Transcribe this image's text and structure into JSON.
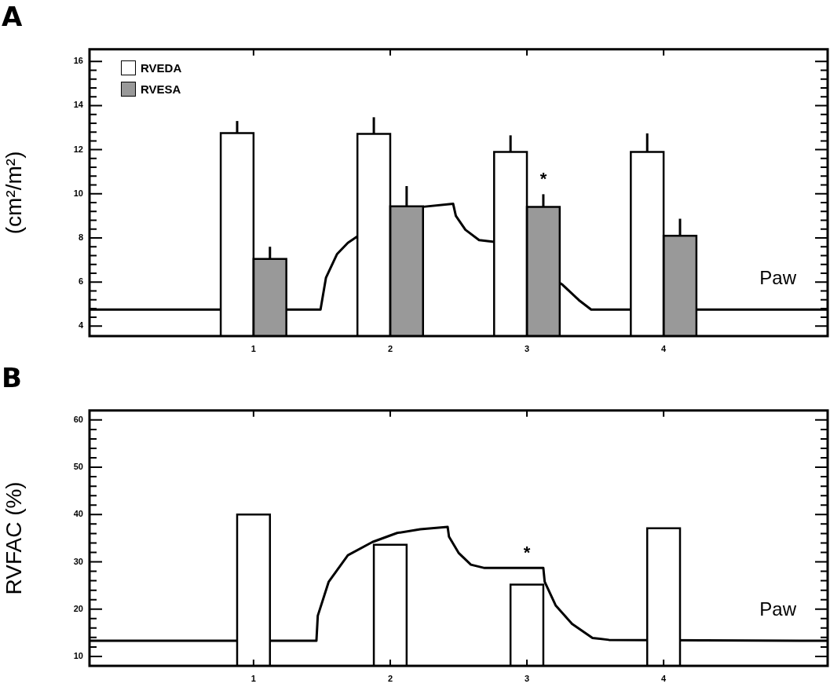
{
  "chart_data": [
    {
      "type": "bar",
      "title": "A",
      "ylabel": "(cm²/m²)",
      "x": [
        1,
        2,
        3,
        4
      ],
      "xlim": [
        -0.2,
        5.2
      ],
      "xticks": [
        1,
        2,
        3,
        4
      ],
      "ylim": [
        3.55,
        16.55
      ],
      "yticks": [
        4,
        {
          "value": 4.4,
          "label": null
        },
        {
          "value": 4.8,
          "label": null
        },
        {
          "value": 5.2,
          "label": null
        },
        {
          "value": 5.6,
          "label": null
        },
        6,
        {
          "value": 6.4,
          "label": null
        },
        {
          "value": 6.8,
          "label": null
        },
        {
          "value": 7.2,
          "label": null
        },
        {
          "value": 7.6,
          "label": null
        },
        8,
        {
          "value": 8.4,
          "label": null
        },
        {
          "value": 8.8,
          "label": null
        },
        {
          "value": 9.2,
          "label": null
        },
        {
          "value": 9.6,
          "label": null
        },
        10,
        {
          "value": 10.4,
          "label": null
        },
        {
          "value": 10.8,
          "label": null
        },
        {
          "value": 11.2,
          "label": null
        },
        {
          "value": 11.6,
          "label": null
        },
        12,
        {
          "value": 12.4,
          "label": null
        },
        {
          "value": 12.8,
          "label": null
        },
        {
          "value": 13.2,
          "label": null
        },
        {
          "value": 13.6,
          "label": null
        },
        14,
        {
          "value": 14.4,
          "label": null
        },
        {
          "value": 14.8,
          "label": null
        },
        {
          "value": 15.2,
          "label": null
        },
        {
          "value": 15.6,
          "label": null
        },
        16
      ],
      "legend": "top left",
      "series": [
        {
          "name": "RVEDA",
          "color": "#ffffff",
          "values": [
            12.75,
            12.72,
            11.9,
            11.9
          ],
          "errors": [
            [
              12.75,
              13.3
            ],
            [
              12.72,
              13.47
            ],
            [
              11.9,
              12.65
            ],
            [
              11.9,
              12.74
            ]
          ]
        },
        {
          "name": "RVESA",
          "color": "#999999",
          "values": [
            7.05,
            9.43,
            9.41,
            8.1
          ],
          "errors": [
            [
              7.05,
              7.6
            ],
            [
              9.43,
              10.35
            ],
            [
              9.41,
              9.98
            ],
            [
              8.1,
              8.87
            ]
          ]
        },
        {
          "name": "Paw",
          "type": "line",
          "color": "#000000",
          "x": [
            -0.2,
            1.49,
            1.53,
            1.61,
            1.69,
            1.76,
            2.24,
            2.46,
            2.48,
            2.55,
            2.65,
            2.76,
            3.26,
            3.38,
            3.47,
            5.2
          ],
          "values": [
            4.75,
            4.75,
            6.2,
            7.26,
            7.78,
            8.07,
            9.41,
            9.55,
            9.0,
            8.37,
            7.9,
            7.82,
            5.88,
            5.18,
            4.75,
            4.75
          ]
        }
      ],
      "annotations": [
        {
          "text": "*",
          "x": 3,
          "y": 9.98
        }
      ]
    },
    {
      "type": "bar",
      "title": "B",
      "ylabel": "RVFAC (%)",
      "x": [
        1,
        2,
        3,
        4
      ],
      "xlim": [
        -0.2,
        5.2
      ],
      "xticks": [
        1,
        2,
        3,
        4
      ],
      "ylim": [
        8,
        62
      ],
      "yticks": [
        10,
        {
          "value": 12,
          "label": null
        },
        {
          "value": 14,
          "label": null
        },
        {
          "value": 16,
          "label": null
        },
        {
          "value": 18,
          "label": null
        },
        20,
        {
          "value": 22,
          "label": null
        },
        {
          "value": 24,
          "label": null
        },
        {
          "value": 26,
          "label": null
        },
        {
          "value": 28,
          "label": null
        },
        30,
        {
          "value": 32,
          "label": null
        },
        {
          "value": 34,
          "label": null
        },
        {
          "value": 36,
          "label": null
        },
        {
          "value": 38,
          "label": null
        },
        40,
        {
          "value": 42,
          "label": null
        },
        {
          "value": 44,
          "label": null
        },
        {
          "value": 46,
          "label": null
        },
        {
          "value": 48,
          "label": null
        },
        50,
        {
          "value": 52,
          "label": null
        },
        {
          "value": 54,
          "label": null
        },
        {
          "value": 56,
          "label": null
        },
        {
          "value": 58,
          "label": null
        },
        60
      ],
      "series": [
        {
          "color": "#ffffff",
          "values": [
            40,
            33.6,
            25.2,
            37.1
          ]
        },
        {
          "name": "Paw",
          "type": "line",
          "color": "#000000",
          "x": [
            -0.2,
            1.46,
            1.47,
            1.55,
            1.69,
            1.87,
            2.05,
            2.22,
            2.42,
            2.43,
            2.5,
            2.59,
            2.69,
            3.12,
            3.13,
            3.21,
            3.33,
            3.48,
            3.6,
            5.2
          ],
          "values": [
            13.3,
            13.3,
            18.6,
            25.8,
            31.4,
            34.2,
            36.1,
            36.9,
            37.4,
            35.3,
            31.9,
            29.4,
            28.7,
            28.7,
            25.8,
            20.8,
            16.9,
            13.9,
            13.5,
            13.3
          ]
        }
      ],
      "annotations": [
        {
          "text": "*",
          "x": 3,
          "y": 28.7
        }
      ]
    }
  ]
}
